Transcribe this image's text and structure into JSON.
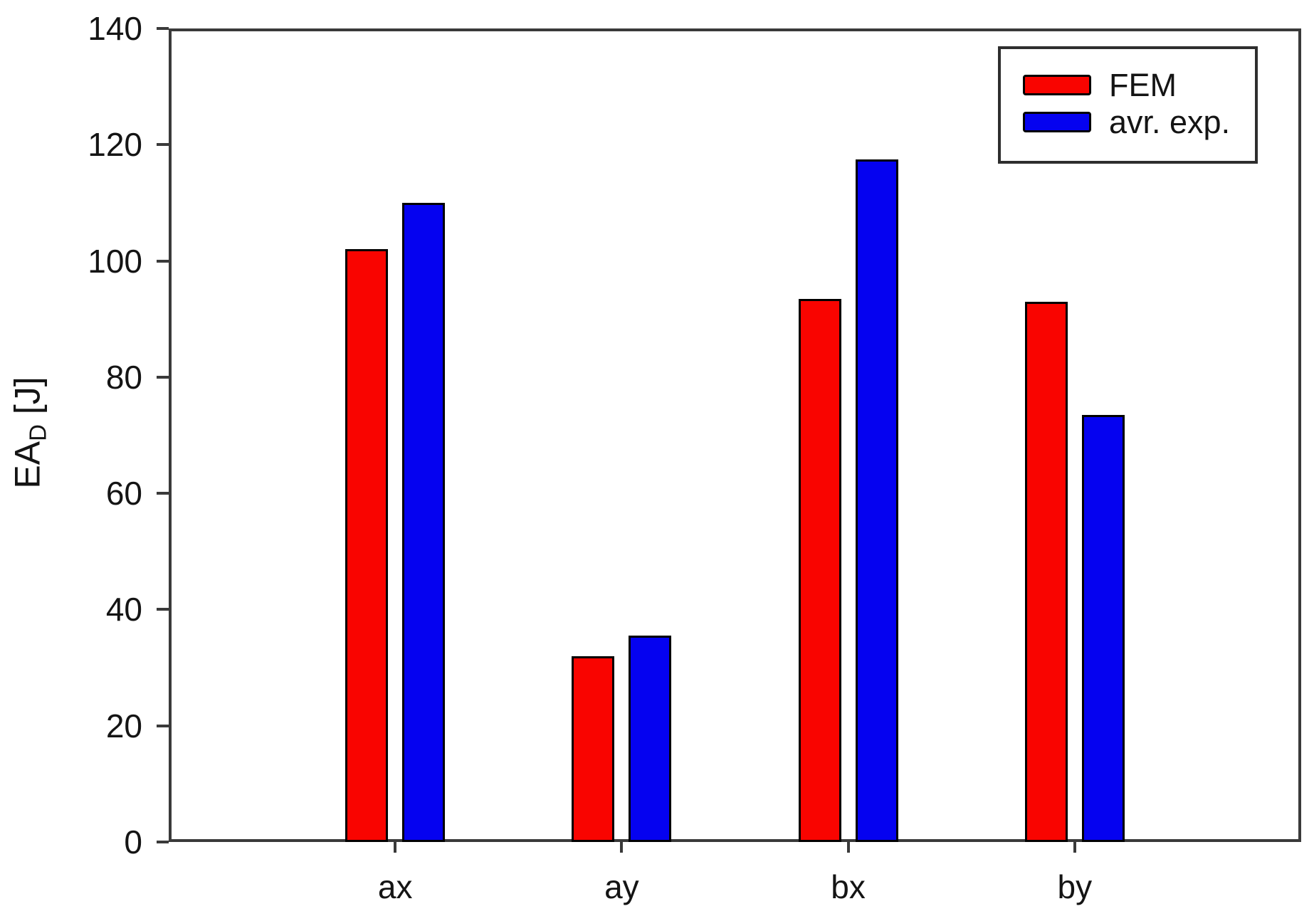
{
  "figure": {
    "background_color": "#ffffff",
    "axis_color": "#3a3a3a",
    "bar_border_color": "#000000"
  },
  "y_axis": {
    "label_base": "EA",
    "label_sub": "D",
    "label_unit": "[J]"
  },
  "legend": {
    "position": "top-right"
  },
  "chart_data": {
    "type": "bar",
    "title": "",
    "xlabel": "",
    "ylabel": "EA_D [J]",
    "categories": [
      "ax",
      "ay",
      "bx",
      "by"
    ],
    "series": [
      {
        "name": "FEM",
        "color": "#f90400",
        "values": [
          102,
          32,
          93.5,
          93
        ]
      },
      {
        "name": "avr. exp.",
        "color": "#0502f0",
        "values": [
          110,
          35.5,
          117.5,
          73.5
        ]
      }
    ],
    "ylim": [
      0,
      140
    ],
    "yticks": [
      0,
      20,
      40,
      60,
      80,
      100,
      120,
      140
    ],
    "grid": false,
    "legend_position": "top-right"
  }
}
